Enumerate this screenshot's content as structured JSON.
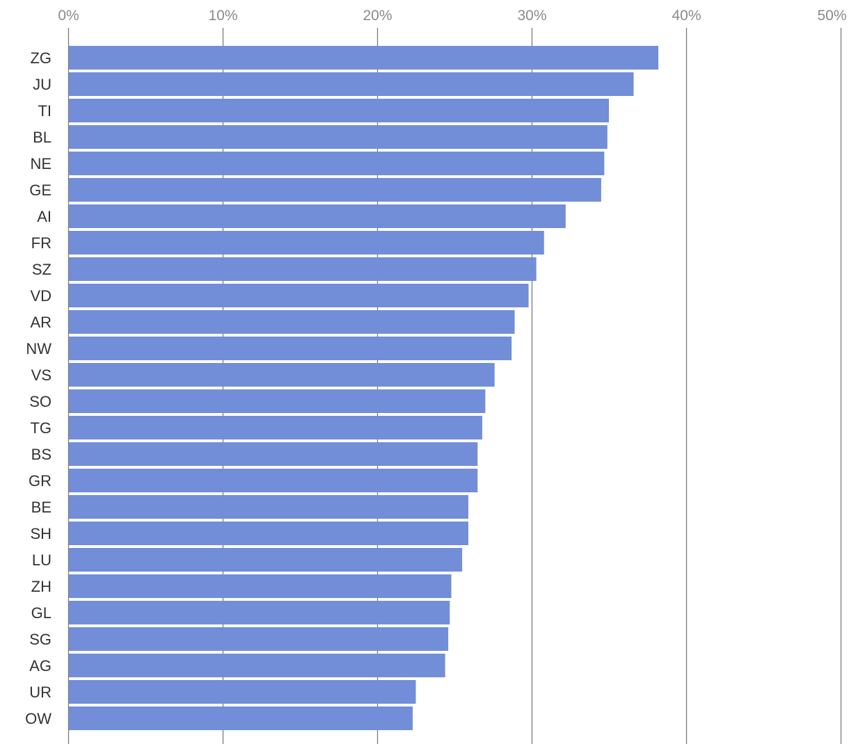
{
  "chart_data": {
    "type": "bar",
    "orientation": "horizontal",
    "title": "",
    "xlabel": "",
    "ylabel": "",
    "xlim": [
      0,
      50
    ],
    "x_ticks": [
      0,
      10,
      20,
      30,
      40,
      50
    ],
    "x_tick_labels": [
      "0%",
      "10%",
      "20%",
      "30%",
      "40%",
      "50%"
    ],
    "grid": true,
    "legend": "none",
    "bar_color": "#728ed8",
    "categories": [
      "ZG",
      "JU",
      "TI",
      "BL",
      "NE",
      "GE",
      "AI",
      "FR",
      "SZ",
      "VD",
      "AR",
      "NW",
      "VS",
      "SO",
      "TG",
      "BS",
      "GR",
      "BE",
      "SH",
      "LU",
      "ZH",
      "GL",
      "SG",
      "AG",
      "UR",
      "OW"
    ],
    "values": [
      38.2,
      36.6,
      35.0,
      34.9,
      34.7,
      34.5,
      32.2,
      30.8,
      30.3,
      29.8,
      28.9,
      28.7,
      27.6,
      27.0,
      26.8,
      26.5,
      26.5,
      25.9,
      25.9,
      25.5,
      24.8,
      24.7,
      24.6,
      24.4,
      22.5,
      22.3
    ]
  }
}
